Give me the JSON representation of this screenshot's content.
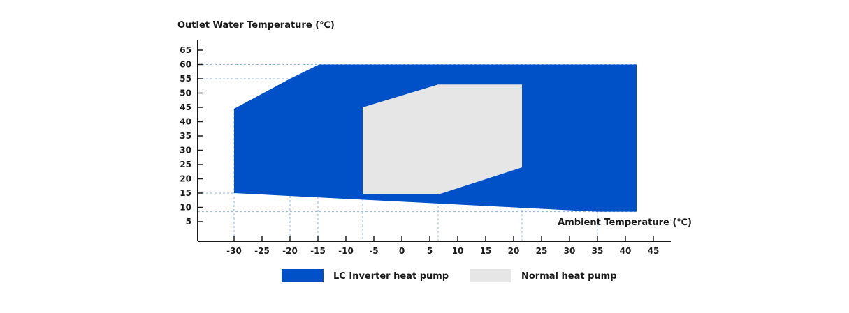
{
  "chart_data": {
    "type": "area",
    "ylabel": "Outlet Water Temperature (℃)",
    "xlabel": "Ambient Temperature (℃)",
    "x_ticks": [
      -30,
      -25,
      -20,
      -15,
      -10,
      -5,
      0,
      5,
      10,
      15,
      20,
      25,
      30,
      35,
      40,
      45
    ],
    "y_ticks": [
      5,
      10,
      15,
      20,
      25,
      30,
      35,
      40,
      45,
      50,
      55,
      60,
      65
    ],
    "xlim": [
      -36,
      48
    ],
    "ylim": [
      0,
      68
    ],
    "series": [
      {
        "name": "LC Inverter heat pump",
        "color": "#0050c8",
        "polygon": [
          [
            -30,
            15
          ],
          [
            -30,
            44.5
          ],
          [
            -20,
            55
          ],
          [
            -14.8,
            60
          ],
          [
            42,
            60
          ],
          [
            42,
            8.5
          ],
          [
            35,
            8.5
          ]
        ]
      },
      {
        "name": "Normal heat pump",
        "color": "#e6e6e6",
        "polygon": [
          [
            -7,
            14.5
          ],
          [
            -7,
            45
          ],
          [
            6.5,
            53
          ],
          [
            21.5,
            53
          ],
          [
            21.5,
            24
          ],
          [
            6.5,
            14.5
          ]
        ]
      }
    ],
    "reference_x": [
      -30,
      -20,
      -15,
      -7,
      6.5,
      21.5,
      35
    ],
    "reference_y": [
      8.5,
      15,
      55,
      60
    ],
    "legend_position": "bottom",
    "legend": [
      "LC Inverter heat pump",
      "Normal heat pump"
    ]
  }
}
